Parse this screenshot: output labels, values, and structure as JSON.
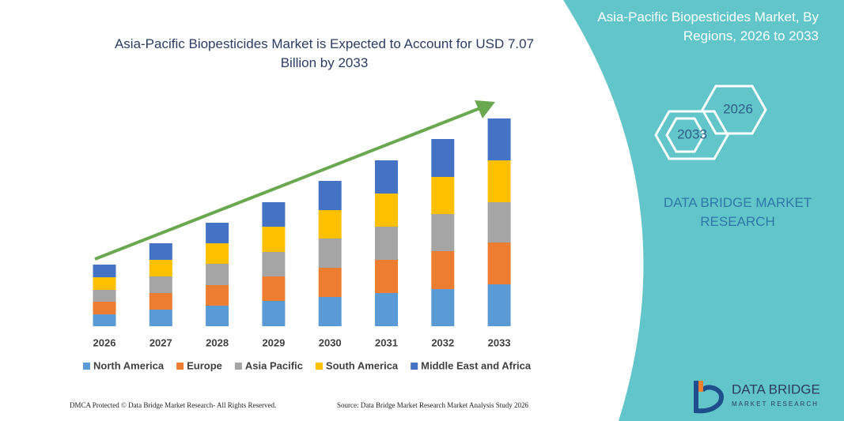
{
  "chart_data": {
    "type": "bar",
    "stacked": true,
    "title": "Asia-Pacific Biopesticides Market is Expected to Account for USD 7.07 Billion by 2033",
    "categories": [
      "2026",
      "2027",
      "2028",
      "2029",
      "2030",
      "2031",
      "2032",
      "2033"
    ],
    "series": [
      {
        "name": "North America",
        "color": "#5b9bd5",
        "values": [
          15,
          21,
          26,
          32,
          37,
          42,
          47,
          53
        ]
      },
      {
        "name": "Europe",
        "color": "#ed7d31",
        "values": [
          16,
          21,
          26,
          31,
          37,
          42,
          48,
          53
        ]
      },
      {
        "name": "Asia Pacific",
        "color": "#a5a5a5",
        "values": [
          15,
          21,
          27,
          31,
          37,
          42,
          47,
          51
        ]
      },
      {
        "name": "South America",
        "color": "#ffc000",
        "values": [
          16,
          21,
          26,
          32,
          36,
          42,
          47,
          53
        ]
      },
      {
        "name": "Middle East and Africa",
        "color": "#4472c4",
        "values": [
          16,
          21,
          26,
          31,
          37,
          42,
          48,
          53
        ]
      }
    ]
  },
  "panel": {
    "title": "Asia-Pacific Biopesticides Market, By Regions, 2026 to 2033",
    "hex_start": "2026",
    "hex_end": "2033",
    "brand": "DATA BRIDGE MARKET RESEARCH"
  },
  "logo": {
    "name": "DATA BRIDGE",
    "tagline": "MARKET RESEARCH"
  },
  "footer": {
    "left": "DMCA Protected © Data Bridge Market Research- All Rights Reserved.",
    "right": "Source: Data Bridge Market Research Market Analysis Study 2026"
  }
}
